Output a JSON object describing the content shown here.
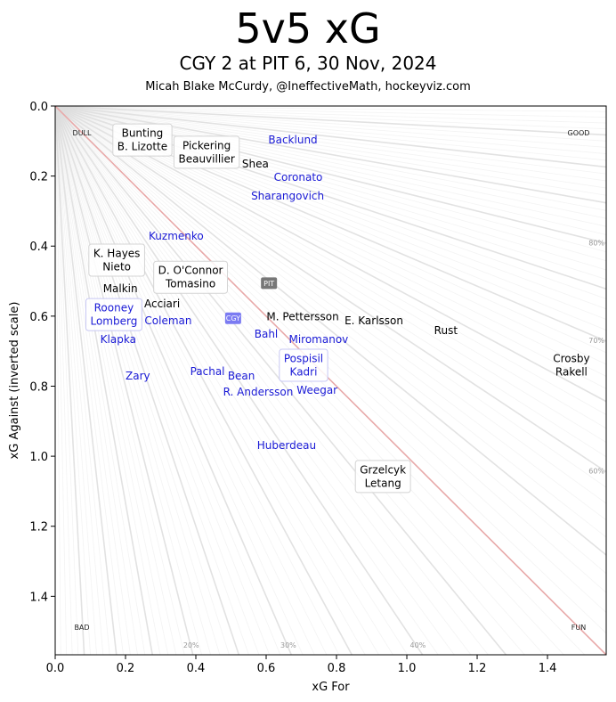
{
  "header": {
    "title": "5v5 xG",
    "subtitle": "CGY 2 at PIT 6, 30 Nov, 2024",
    "credit": "Micah Blake McCurdy, @IneffectiveMath, hockeyviz.com"
  },
  "chart_data": {
    "type": "scatter",
    "title": "5v5 xG",
    "subtitle": "CGY 2 at PIT 6, 30 Nov, 2024",
    "xlabel": "xG For",
    "ylabel": "xG Against (inverted scale)",
    "xlim": [
      0,
      1.567
    ],
    "ylim": [
      1.567,
      0
    ],
    "y_inverted": true,
    "xticks": [
      "0.0",
      "0.2",
      "0.4",
      "0.6",
      "0.8",
      "1.0",
      "1.2",
      "1.4"
    ],
    "xtick_values": [
      0,
      0.2,
      0.4,
      0.6,
      0.8,
      1.0,
      1.2,
      1.4
    ],
    "yticks": [
      "0.0",
      "0.2",
      "0.4",
      "0.6",
      "0.8",
      "1.0",
      "1.2",
      "1.4"
    ],
    "ytick_values": [
      0,
      0.2,
      0.4,
      0.6,
      0.8,
      1.0,
      1.2,
      1.4
    ],
    "grid": false,
    "reference_line": {
      "description": "50% xGF line",
      "color": "#e8a9a9"
    },
    "share_rays": {
      "step_percent": 1,
      "major_step_percent": 5,
      "color": "#dddddd"
    },
    "share_labels": [
      {
        "text": "20%",
        "share": 0.2,
        "edge": "bottom"
      },
      {
        "text": "30%",
        "share": 0.3,
        "edge": "bottom"
      },
      {
        "text": "40%",
        "share": 0.4,
        "edge": "bottom"
      },
      {
        "text": "60%",
        "share": 0.6,
        "edge": "right"
      },
      {
        "text": "70%",
        "share": 0.7,
        "edge": "right"
      },
      {
        "text": "80%",
        "share": 0.8,
        "edge": "right"
      }
    ],
    "corner_labels": [
      {
        "text": "DULL",
        "corner": "top-left"
      },
      {
        "text": "GOOD",
        "corner": "top-right"
      },
      {
        "text": "BAD",
        "corner": "bottom-left"
      },
      {
        "text": "FUN",
        "corner": "bottom-right"
      }
    ],
    "teams": {
      "PIT": {
        "color": "#000000",
        "badge_color": "#777777"
      },
      "CGY": {
        "color": "#1a1ad6",
        "badge_color": "#7b7bf2"
      }
    },
    "team_badges": [
      {
        "team": "PIT",
        "label": "PIT",
        "x": 0.608,
        "y": 0.506
      },
      {
        "team": "CGY",
        "label": "CGY",
        "x": 0.506,
        "y": 0.606
      }
    ],
    "points": [
      {
        "team": "PIT",
        "labels": [
          "Bunting",
          "B. Lizotte"
        ],
        "x": 0.248,
        "y": 0.097,
        "boxed": true
      },
      {
        "team": "PIT",
        "labels": [
          "Pickering",
          "Beauvillier"
        ],
        "x": 0.375,
        "y": 0.132,
        "boxed": true
      },
      {
        "team": "PIT",
        "labels": [
          "Shea"
        ],
        "x": 0.554,
        "y": 0.165,
        "boxed": false
      },
      {
        "team": "CGY",
        "labels": [
          "Backlund"
        ],
        "x": 0.676,
        "y": 0.097,
        "boxed": false
      },
      {
        "team": "CGY",
        "labels": [
          "Coronato"
        ],
        "x": 0.676,
        "y": 0.204,
        "boxed": false
      },
      {
        "team": "CGY",
        "labels": [
          "Sharangovich"
        ],
        "x": 0.661,
        "y": 0.257,
        "boxed": false
      },
      {
        "team": "CGY",
        "labels": [
          "Kuzmenko"
        ],
        "x": 0.344,
        "y": 0.372,
        "boxed": false
      },
      {
        "team": "PIT",
        "labels": [
          "K. Hayes",
          "Nieto"
        ],
        "x": 0.175,
        "y": 0.44,
        "boxed": true
      },
      {
        "team": "PIT",
        "labels": [
          "D. O'Connor",
          "Tomasino"
        ],
        "x": 0.385,
        "y": 0.489,
        "boxed": true
      },
      {
        "team": "PIT",
        "labels": [
          "Acciari"
        ],
        "x": 0.304,
        "y": 0.565,
        "boxed": false
      },
      {
        "team": "CGY",
        "labels": [
          "Rooney",
          "Lomberg"
        ],
        "x": 0.177,
        "y": 0.588,
        "boxed": true
      },
      {
        "team": "PIT",
        "labels": [
          "Malkin"
        ],
        "x": 0.208,
        "y": 0.59,
        "boxed": false
      },
      {
        "team": "CGY",
        "labels": [
          "Coleman"
        ],
        "x": 0.291,
        "y": 0.593,
        "boxed": false
      },
      {
        "team": "CGY",
        "labels": [
          "Klapka"
        ],
        "x": 0.159,
        "y": 0.651,
        "boxed": false
      },
      {
        "team": "PIT",
        "labels": [
          "M. Pettersson"
        ],
        "x": 0.704,
        "y": 0.601,
        "boxed": false
      },
      {
        "team": "CGY",
        "labels": [
          "Bahl"
        ],
        "x": 0.6,
        "y": 0.651,
        "boxed": false
      },
      {
        "team": "CGY",
        "labels": [
          "Miromanov"
        ],
        "x": 0.749,
        "y": 0.667,
        "boxed": false
      },
      {
        "team": "PIT",
        "labels": [
          "E. Karlsson"
        ],
        "x": 0.876,
        "y": 0.634,
        "boxed": false
      },
      {
        "team": "PIT",
        "labels": [
          "Rust"
        ],
        "x": 1.111,
        "y": 0.641,
        "boxed": false
      },
      {
        "team": "CGY",
        "labels": [
          "Pospisil",
          "Kadri"
        ],
        "x": 0.686,
        "y": 0.725,
        "boxed": true
      },
      {
        "team": "CGY",
        "labels": [
          "Weegar"
        ],
        "x": 0.722,
        "y": 0.743,
        "boxed": false
      },
      {
        "team": "CGY",
        "labels": [
          "R. Andersson"
        ],
        "x": 0.638,
        "y": 0.761,
        "boxed": false
      },
      {
        "team": "CGY",
        "labels": [
          "Pachal"
        ],
        "x": 0.433,
        "y": 0.758,
        "boxed": false
      },
      {
        "team": "CGY",
        "labels": [
          "Bean"
        ],
        "x": 0.499,
        "y": 0.791,
        "boxed": false
      },
      {
        "team": "CGY",
        "labels": [
          "Zary"
        ],
        "x": 0.235,
        "y": 0.771,
        "boxed": false
      },
      {
        "team": "PIT",
        "labels": [
          "Crosby",
          "Rakell"
        ],
        "x": 1.468,
        "y": 0.74,
        "boxed": false
      },
      {
        "team": "CGY",
        "labels": [
          "Huberdeau"
        ],
        "x": 0.658,
        "y": 0.969,
        "boxed": false
      },
      {
        "team": "PIT",
        "labels": [
          "Grzelcyk",
          "Letang"
        ],
        "x": 0.932,
        "y": 1.058,
        "boxed": true
      }
    ]
  }
}
